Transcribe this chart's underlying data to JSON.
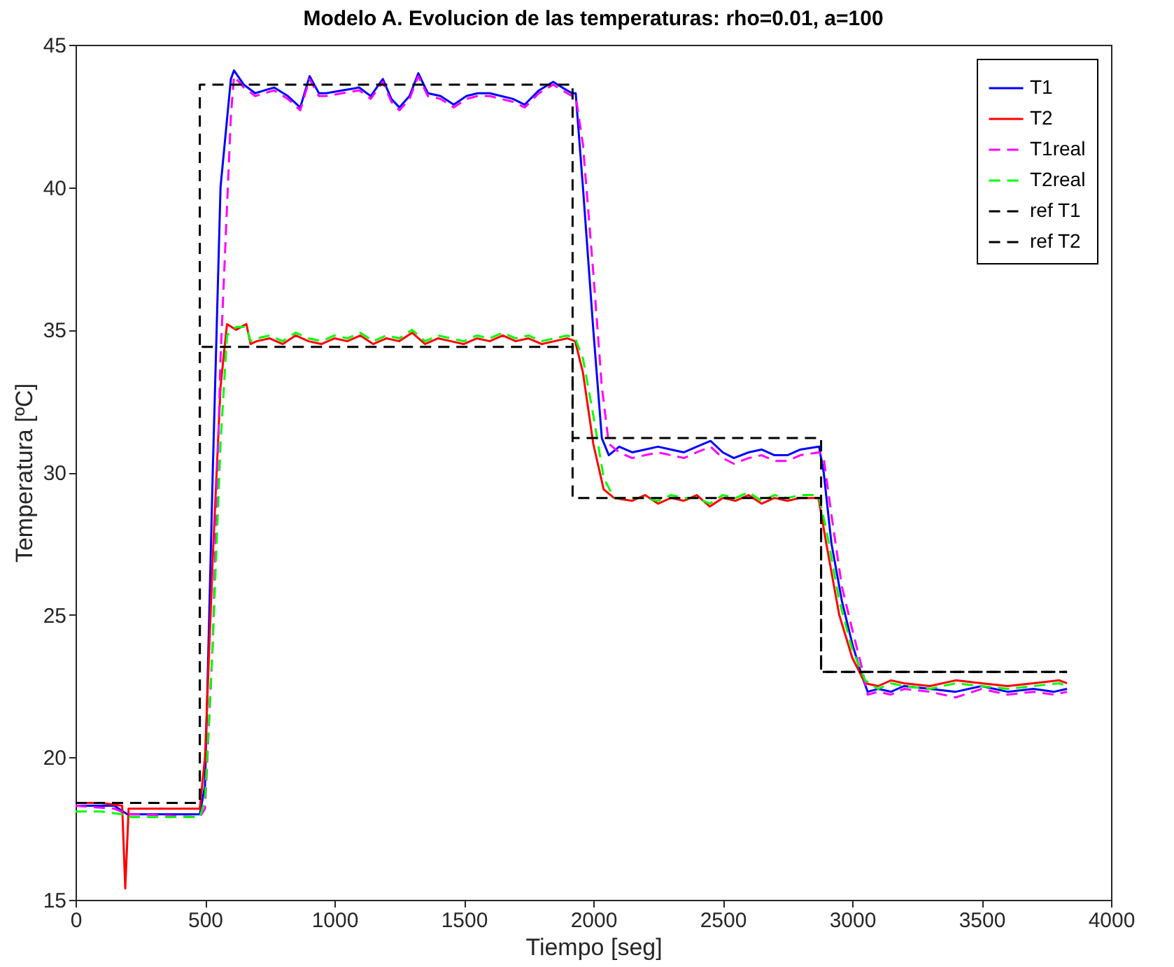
{
  "chart_data": {
    "type": "line",
    "title": "Modelo A. Evolucion de las temperaturas: rho=0.01, a=100",
    "xlabel": "Tiempo [seg]",
    "ylabel": "Temperatura [ºC]",
    "xlim": [
      0,
      4000
    ],
    "xticks": [
      0,
      500,
      1000,
      1500,
      2000,
      2500,
      3000,
      3500,
      4000
    ],
    "ylim": [
      15,
      45
    ],
    "yticks": [
      15,
      20,
      25,
      30,
      35,
      40,
      45
    ],
    "grid": false,
    "legend": "top right",
    "series": [
      {
        "name": "T1",
        "color": "#0000ff",
        "line_style": "solid",
        "x": [
          0,
          150,
          200,
          250,
          480,
          500,
          530,
          560,
          600,
          612,
          650,
          694,
          730,
          767,
          820,
          868,
          904,
          940,
          968,
          1030,
          1096,
          1140,
          1187,
          1220,
          1251,
          1290,
          1324,
          1361,
          1410,
          1461,
          1510,
          1553,
          1600,
          1644,
          1690,
          1735,
          1790,
          1845,
          1880,
          1918,
          1932,
          1960,
          2000,
          2033,
          2060,
          2100,
          2150,
          2200,
          2250,
          2300,
          2350,
          2400,
          2453,
          2500,
          2543,
          2600,
          2650,
          2700,
          2750,
          2800,
          2872,
          2890,
          2920,
          2960,
          3000,
          3036,
          3060,
          3100,
          3150,
          3200,
          3300,
          3400,
          3500,
          3600,
          3700,
          3780,
          3830
        ],
        "values": [
          18.3,
          18.3,
          18.0,
          18.0,
          18.0,
          19.0,
          30.0,
          40.0,
          43.8,
          44.1,
          43.6,
          43.3,
          43.4,
          43.5,
          43.2,
          42.8,
          43.9,
          43.3,
          43.3,
          43.4,
          43.5,
          43.2,
          43.8,
          43.1,
          42.8,
          43.2,
          44.0,
          43.3,
          43.2,
          42.9,
          43.2,
          43.3,
          43.3,
          43.2,
          43.1,
          42.9,
          43.4,
          43.7,
          43.5,
          43.3,
          43.3,
          40.0,
          35.0,
          31.2,
          30.6,
          30.9,
          30.7,
          30.8,
          30.9,
          30.8,
          30.7,
          30.9,
          31.1,
          30.7,
          30.5,
          30.7,
          30.8,
          30.6,
          30.6,
          30.8,
          30.9,
          30.0,
          27.5,
          25.5,
          24.0,
          22.9,
          22.3,
          22.4,
          22.3,
          22.5,
          22.4,
          22.3,
          22.5,
          22.3,
          22.4,
          22.3,
          22.4
        ]
      },
      {
        "name": "T2",
        "color": "#ff0000",
        "line_style": "solid",
        "x": [
          0,
          100,
          180,
          192,
          205,
          250,
          480,
          500,
          530,
          560,
          585,
          620,
          660,
          676,
          700,
          750,
          800,
          850,
          900,
          950,
          1000,
          1050,
          1100,
          1150,
          1200,
          1250,
          1300,
          1350,
          1400,
          1450,
          1500,
          1550,
          1600,
          1650,
          1700,
          1750,
          1800,
          1850,
          1900,
          1930,
          1960,
          2000,
          2040,
          2080,
          2150,
          2200,
          2250,
          2300,
          2350,
          2400,
          2450,
          2500,
          2550,
          2600,
          2650,
          2700,
          2750,
          2800,
          2870,
          2900,
          2950,
          3000,
          3050,
          3100,
          3150,
          3200,
          3300,
          3400,
          3500,
          3600,
          3700,
          3800,
          3830
        ],
        "values": [
          18.4,
          18.4,
          18.3,
          15.4,
          18.2,
          18.2,
          18.2,
          20.0,
          27.0,
          33.0,
          35.2,
          35.0,
          35.2,
          34.5,
          34.6,
          34.7,
          34.5,
          34.8,
          34.6,
          34.5,
          34.7,
          34.6,
          34.8,
          34.5,
          34.7,
          34.6,
          34.9,
          34.5,
          34.7,
          34.6,
          34.5,
          34.7,
          34.6,
          34.8,
          34.6,
          34.7,
          34.5,
          34.6,
          34.7,
          34.6,
          33.5,
          31.0,
          29.4,
          29.1,
          29.0,
          29.2,
          28.9,
          29.1,
          29.0,
          29.2,
          28.8,
          29.1,
          29.0,
          29.2,
          28.9,
          29.1,
          29.0,
          29.1,
          29.1,
          27.5,
          25.0,
          23.5,
          22.6,
          22.5,
          22.7,
          22.6,
          22.5,
          22.7,
          22.6,
          22.5,
          22.6,
          22.7,
          22.6
        ]
      },
      {
        "name": "T1real",
        "color": "#ff00ff",
        "line_style": "dashed",
        "x": [
          0,
          150,
          200,
          250,
          480,
          500,
          530,
          560,
          600,
          612,
          650,
          694,
          730,
          767,
          820,
          868,
          904,
          940,
          968,
          1030,
          1096,
          1140,
          1187,
          1220,
          1251,
          1290,
          1324,
          1361,
          1410,
          1461,
          1510,
          1553,
          1600,
          1644,
          1690,
          1735,
          1790,
          1845,
          1880,
          1918,
          1932,
          1960,
          2000,
          2033,
          2060,
          2100,
          2150,
          2200,
          2250,
          2300,
          2350,
          2400,
          2453,
          2500,
          2543,
          2600,
          2650,
          2700,
          2750,
          2800,
          2872,
          2890,
          2920,
          2960,
          3000,
          3036,
          3060,
          3100,
          3150,
          3200,
          3300,
          3400,
          3500,
          3600,
          3700,
          3780,
          3830
        ],
        "values": [
          18.3,
          18.2,
          18.0,
          18.0,
          17.9,
          18.2,
          24.0,
          34.0,
          42.5,
          43.9,
          43.5,
          43.2,
          43.3,
          43.4,
          43.1,
          42.7,
          43.8,
          43.2,
          43.2,
          43.3,
          43.4,
          43.1,
          43.7,
          43.0,
          42.7,
          43.1,
          43.9,
          43.2,
          43.1,
          42.8,
          43.1,
          43.2,
          43.2,
          43.1,
          43.0,
          42.8,
          43.3,
          43.6,
          43.4,
          43.2,
          43.2,
          41.5,
          37.0,
          33.0,
          31.0,
          30.7,
          30.5,
          30.6,
          30.7,
          30.6,
          30.5,
          30.7,
          30.9,
          30.5,
          30.3,
          30.5,
          30.6,
          30.4,
          30.4,
          30.6,
          30.7,
          30.5,
          28.5,
          26.0,
          24.5,
          23.2,
          22.2,
          22.3,
          22.2,
          22.4,
          22.3,
          22.1,
          22.4,
          22.2,
          22.3,
          22.2,
          22.3
        ]
      },
      {
        "name": "T2real",
        "color": "#00ff00",
        "line_style": "dashed",
        "x": [
          0,
          100,
          180,
          192,
          205,
          250,
          480,
          500,
          530,
          560,
          585,
          620,
          660,
          676,
          700,
          750,
          800,
          850,
          900,
          950,
          1000,
          1050,
          1100,
          1150,
          1200,
          1250,
          1300,
          1350,
          1400,
          1450,
          1500,
          1550,
          1600,
          1650,
          1700,
          1750,
          1800,
          1850,
          1900,
          1930,
          1960,
          2000,
          2040,
          2080,
          2150,
          2200,
          2250,
          2300,
          2350,
          2400,
          2450,
          2500,
          2550,
          2600,
          2650,
          2700,
          2750,
          2800,
          2870,
          2900,
          2950,
          3000,
          3050,
          3100,
          3150,
          3200,
          3300,
          3400,
          3500,
          3600,
          3700,
          3800,
          3830
        ],
        "values": [
          18.1,
          18.1,
          18.0,
          17.9,
          17.9,
          17.9,
          17.9,
          18.5,
          24.0,
          31.0,
          34.8,
          35.1,
          35.1,
          34.6,
          34.7,
          34.8,
          34.6,
          34.9,
          34.7,
          34.6,
          34.8,
          34.7,
          34.9,
          34.6,
          34.8,
          34.7,
          35.0,
          34.6,
          34.8,
          34.7,
          34.6,
          34.8,
          34.7,
          34.9,
          34.7,
          34.8,
          34.6,
          34.7,
          34.8,
          34.7,
          34.0,
          32.0,
          29.8,
          29.1,
          29.1,
          29.1,
          29.0,
          29.2,
          29.1,
          29.1,
          28.9,
          29.2,
          29.1,
          29.3,
          29.0,
          29.2,
          29.1,
          29.2,
          29.2,
          28.0,
          25.5,
          23.8,
          22.7,
          22.4,
          22.6,
          22.5,
          22.4,
          22.6,
          22.5,
          22.4,
          22.5,
          22.6,
          22.5
        ]
      },
      {
        "name": "ref T1",
        "type": "step",
        "color": "#000000",
        "line_style": "dashed",
        "x": [
          0,
          480,
          1920,
          2880,
          3830
        ],
        "values": [
          18.4,
          43.6,
          31.2,
          23.0,
          23.0
        ]
      },
      {
        "name": "ref T2",
        "type": "step",
        "color": "#000000",
        "line_style": "dashed",
        "x": [
          0,
          480,
          1920,
          2880,
          3830
        ],
        "values": [
          18.4,
          34.4,
          29.1,
          23.0,
          23.0
        ]
      }
    ]
  }
}
